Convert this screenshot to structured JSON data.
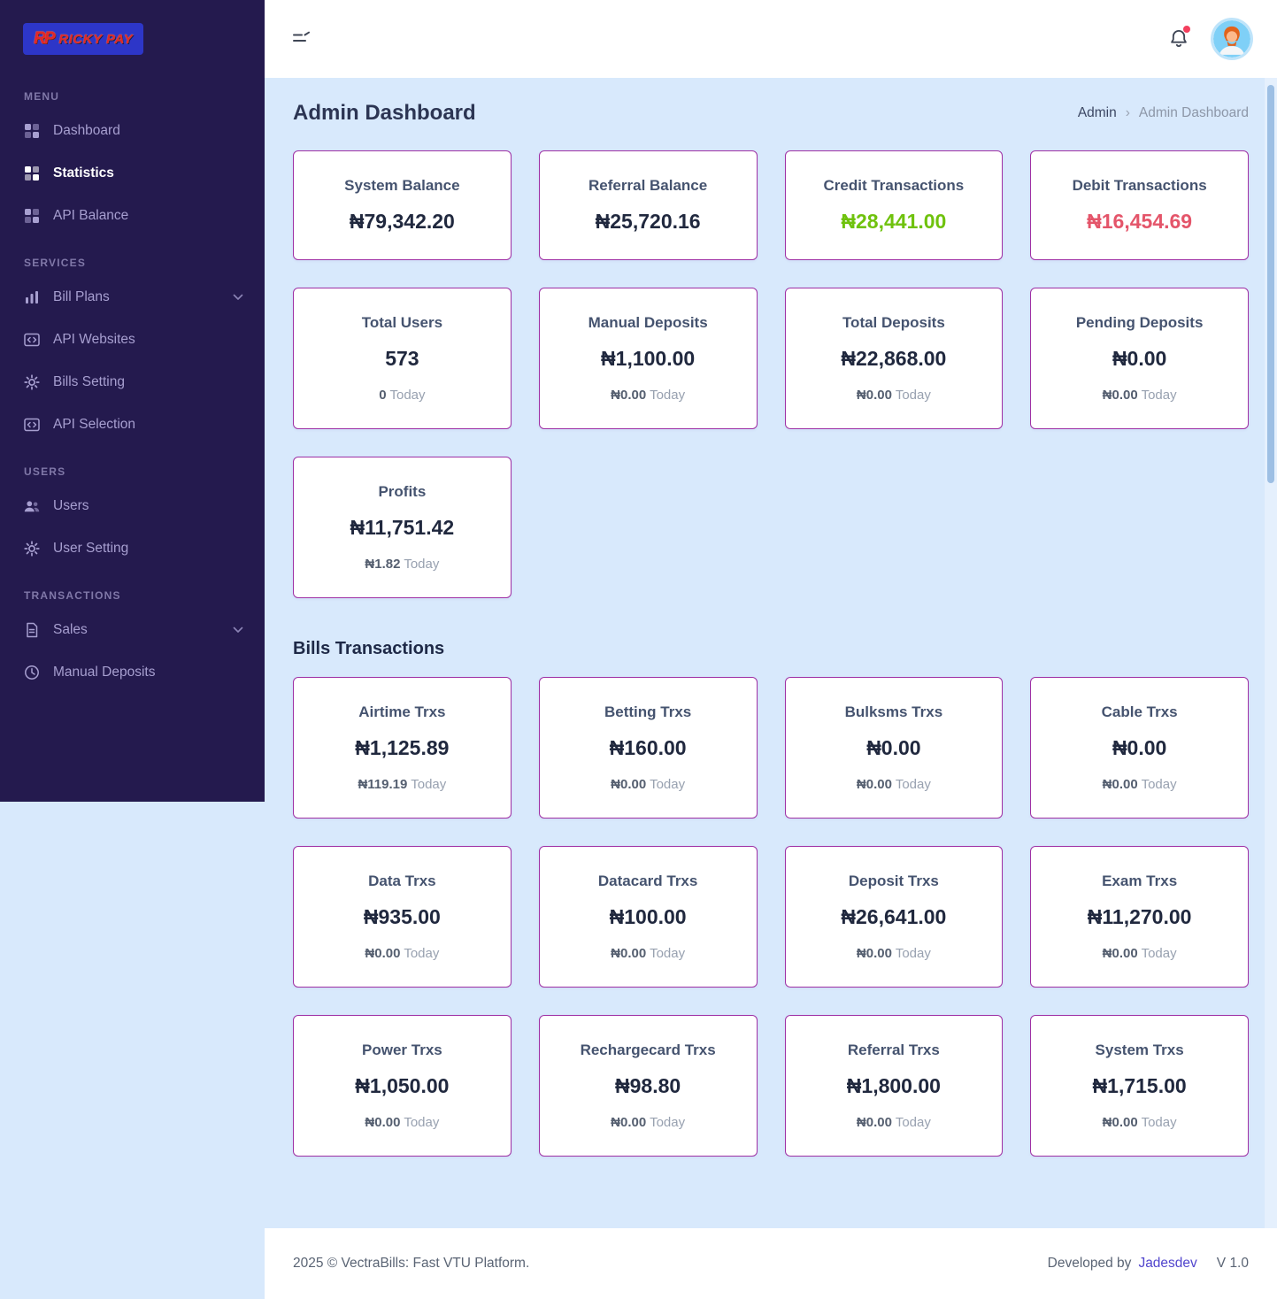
{
  "brand": {
    "initials": "RP",
    "name": "Ricky Pay"
  },
  "sidebar": {
    "sections": [
      {
        "label": "Menu",
        "items": [
          {
            "label": "Dashboard",
            "icon": "grid-icon"
          },
          {
            "label": "Statistics",
            "icon": "grid-icon",
            "active": true
          },
          {
            "label": "API Balance",
            "icon": "grid-icon"
          }
        ]
      },
      {
        "label": "Services",
        "items": [
          {
            "label": "Bill Plans",
            "icon": "bar-chart-icon",
            "expandable": true
          },
          {
            "label": "API Websites",
            "icon": "code-icon"
          },
          {
            "label": "Bills Setting",
            "icon": "gear-icon"
          },
          {
            "label": "API Selection",
            "icon": "code-icon"
          }
        ]
      },
      {
        "label": "Users",
        "items": [
          {
            "label": "Users",
            "icon": "users-icon"
          },
          {
            "label": "User Setting",
            "icon": "gear-icon"
          }
        ]
      },
      {
        "label": "Transactions",
        "items": [
          {
            "label": "Sales",
            "icon": "file-icon",
            "expandable": true
          },
          {
            "label": "Manual Deposits",
            "icon": "clock-icon"
          }
        ]
      }
    ]
  },
  "header": {
    "title": "Admin Dashboard",
    "breadcrumb": {
      "section": "Admin",
      "separator": "›",
      "current": "Admin Dashboard"
    }
  },
  "labels": {
    "today": "Today"
  },
  "stats_cards": [
    {
      "title": "System Balance",
      "value": "₦79,342.20"
    },
    {
      "title": "Referral Balance",
      "value": "₦25,720.16"
    },
    {
      "title": "Credit Transactions",
      "value": "₦28,441.00",
      "color": "green"
    },
    {
      "title": "Debit Transactions",
      "value": "₦16,454.69",
      "color": "red"
    },
    {
      "title": "Total Users",
      "value": "573",
      "today": "0"
    },
    {
      "title": "Manual Deposits",
      "value": "₦1,100.00",
      "today": "₦0.00"
    },
    {
      "title": "Total Deposits",
      "value": "₦22,868.00",
      "today": "₦0.00"
    },
    {
      "title": "Pending Deposits",
      "value": "₦0.00",
      "today": "₦0.00"
    },
    {
      "title": "Profits",
      "value": "₦11,751.42",
      "today": "₦1.82"
    }
  ],
  "bills": {
    "heading": "Bills Transactions",
    "cards": [
      {
        "title": "Airtime Trxs",
        "value": "₦1,125.89",
        "today": "₦119.19"
      },
      {
        "title": "Betting Trxs",
        "value": "₦160.00",
        "today": "₦0.00"
      },
      {
        "title": "Bulksms Trxs",
        "value": "₦0.00",
        "today": "₦0.00"
      },
      {
        "title": "Cable Trxs",
        "value": "₦0.00",
        "today": "₦0.00"
      },
      {
        "title": "Data Trxs",
        "value": "₦935.00",
        "today": "₦0.00"
      },
      {
        "title": "Datacard Trxs",
        "value": "₦100.00",
        "today": "₦0.00"
      },
      {
        "title": "Deposit Trxs",
        "value": "₦26,641.00",
        "today": "₦0.00"
      },
      {
        "title": "Exam Trxs",
        "value": "₦11,270.00",
        "today": "₦0.00"
      },
      {
        "title": "Power Trxs",
        "value": "₦1,050.00",
        "today": "₦0.00"
      },
      {
        "title": "Rechargecard Trxs",
        "value": "₦98.80",
        "today": "₦0.00"
      },
      {
        "title": "Referral Trxs",
        "value": "₦1,800.00",
        "today": "₦0.00"
      },
      {
        "title": "System Trxs",
        "value": "₦1,715.00",
        "today": "₦0.00"
      }
    ]
  },
  "footer": {
    "copyright": "2025 © VectraBills: Fast VTU Platform.",
    "developed_by_label": "Developed by",
    "developer": "Jadesdev",
    "version": "V 1.0"
  },
  "colors": {
    "sidebar_bg": "#241a4e",
    "main_bg": "#d8e9fc",
    "card_border": "#9f31a5",
    "accent_green": "#6fc20d",
    "accent_red": "#e4556a",
    "brand_blue": "#2d36c8",
    "brand_red": "#e3242b",
    "link": "#5145cd"
  }
}
